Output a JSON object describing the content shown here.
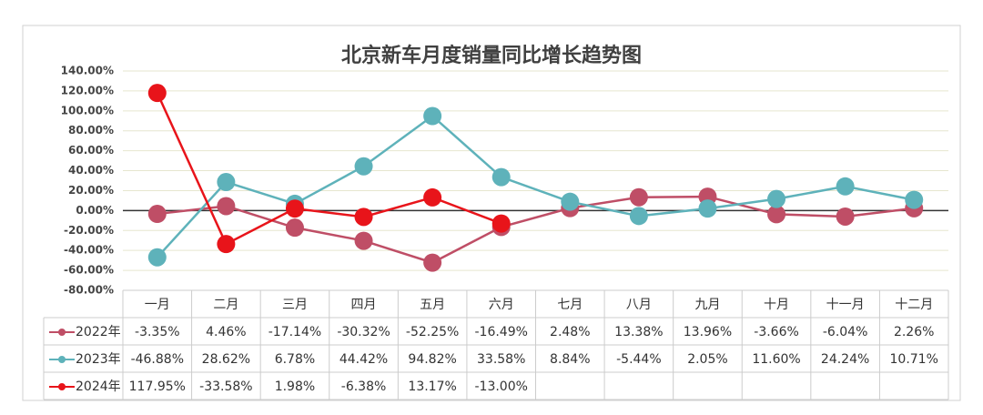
{
  "chart_data": {
    "type": "line",
    "title": "北京新车月度销量同比增长趋势图",
    "categories": [
      "一月",
      "二月",
      "三月",
      "四月",
      "五月",
      "六月",
      "七月",
      "八月",
      "九月",
      "十月",
      "十一月",
      "十二月"
    ],
    "series": [
      {
        "name": "2022年",
        "color": "#bf4e66",
        "values": [
          -3.35,
          4.46,
          -17.14,
          -30.32,
          -52.25,
          -16.49,
          2.48,
          13.38,
          13.96,
          -3.66,
          -6.04,
          2.26
        ],
        "value_labels": [
          "-3.35%",
          "4.46%",
          "-17.14%",
          "-30.32%",
          "-52.25%",
          "-16.49%",
          "2.48%",
          "13.38%",
          "13.96%",
          "-3.66%",
          "-6.04%",
          "2.26%"
        ]
      },
      {
        "name": "2023年",
        "color": "#5eb2ba",
        "values": [
          -46.88,
          28.62,
          6.78,
          44.42,
          94.82,
          33.58,
          8.84,
          -5.44,
          2.05,
          11.6,
          24.24,
          10.71
        ],
        "value_labels": [
          "-46.88%",
          "28.62%",
          "6.78%",
          "44.42%",
          "94.82%",
          "33.58%",
          "8.84%",
          "-5.44%",
          "2.05%",
          "11.60%",
          "24.24%",
          "10.71%"
        ]
      },
      {
        "name": "2024年",
        "color": "#e8141a",
        "values": [
          117.95,
          -33.58,
          1.98,
          -6.38,
          13.17,
          -13.0,
          null,
          null,
          null,
          null,
          null,
          null
        ],
        "value_labels": [
          "117.95%",
          "-33.58%",
          "1.98%",
          "-6.38%",
          "13.17%",
          "-13.00%",
          null,
          null,
          null,
          null,
          null,
          null
        ]
      }
    ],
    "ylim": [
      -80,
      140
    ],
    "yticks": [
      {
        "value": -80,
        "label": "-80.00%"
      },
      {
        "value": -60,
        "label": "-60.00%"
      },
      {
        "value": -40,
        "label": "-40.00%"
      },
      {
        "value": -20,
        "label": "-20.00%"
      },
      {
        "value": 0,
        "label": "0.00%"
      },
      {
        "value": 20,
        "label": "20.00%"
      },
      {
        "value": 40,
        "label": "40.00%"
      },
      {
        "value": 60,
        "label": "60.00%"
      },
      {
        "value": 80,
        "label": "80.00%"
      },
      {
        "value": 100,
        "label": "100.00%"
      },
      {
        "value": 120,
        "label": "120.00%"
      },
      {
        "value": 140,
        "label": "140.00%"
      }
    ],
    "grid": true
  }
}
